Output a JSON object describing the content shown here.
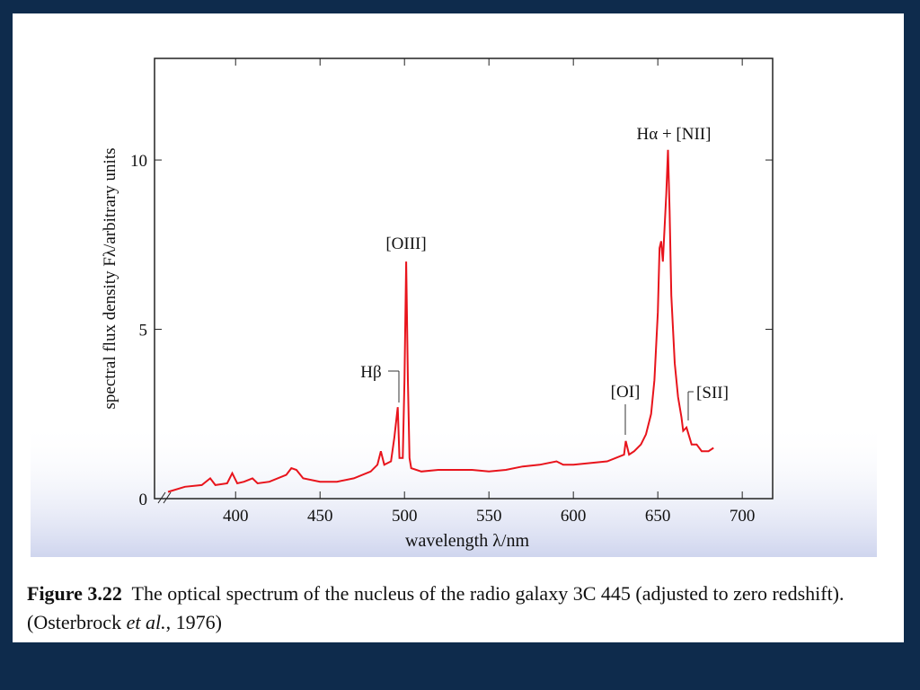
{
  "chart_data": {
    "type": "line",
    "x_label": "wavelength λ/nm",
    "y_label": "spectral flux density Fλ/arbitrary units",
    "xlim": [
      352,
      718
    ],
    "ylim": [
      0,
      13
    ],
    "xticks": [
      400,
      450,
      500,
      550,
      600,
      650,
      700
    ],
    "yticks": [
      0,
      5,
      10
    ],
    "color": "#e8141c",
    "x": [
      360,
      370,
      380,
      385,
      388,
      395,
      398,
      401,
      405,
      410,
      413,
      420,
      430,
      433,
      436,
      440,
      450,
      460,
      470,
      480,
      484,
      486,
      488,
      492,
      494,
      496,
      497,
      499,
      500,
      501,
      502,
      503,
      504,
      510,
      520,
      530,
      540,
      550,
      560,
      570,
      580,
      590,
      594,
      600,
      610,
      620,
      625,
      630,
      631,
      633,
      636,
      640,
      643,
      646,
      648,
      650,
      651,
      652,
      653,
      654,
      655,
      656,
      657,
      658,
      660,
      662,
      664,
      665,
      667,
      670,
      673,
      676,
      680,
      683
    ],
    "values": [
      0.2,
      0.35,
      0.4,
      0.6,
      0.4,
      0.45,
      0.75,
      0.45,
      0.5,
      0.6,
      0.45,
      0.5,
      0.7,
      0.9,
      0.85,
      0.6,
      0.5,
      0.5,
      0.6,
      0.8,
      1.0,
      1.4,
      1.0,
      1.1,
      1.8,
      2.7,
      1.2,
      1.2,
      3.5,
      7.0,
      3.5,
      1.2,
      0.9,
      0.8,
      0.85,
      0.85,
      0.85,
      0.8,
      0.85,
      0.95,
      1.0,
      1.1,
      1.0,
      1.0,
      1.05,
      1.1,
      1.2,
      1.3,
      1.7,
      1.3,
      1.4,
      1.6,
      1.9,
      2.5,
      3.5,
      5.5,
      7.4,
      7.6,
      7.0,
      8.0,
      9.0,
      10.3,
      8.5,
      6.0,
      4.0,
      3.0,
      2.4,
      2.0,
      2.1,
      1.6,
      1.6,
      1.4,
      1.4,
      1.5
    ],
    "annotations": [
      "Hβ",
      "[OIII]",
      "[OI]",
      "Hα + [NII]",
      "[SII]"
    ],
    "caption": {
      "label": "Figure 3.22",
      "text": "The optical spectrum of the nucleus of the radio galaxy 3C 445 (adjusted to zero redshift). (Osterbrock",
      "italic": "et al.",
      "end": ", 1976)"
    }
  }
}
